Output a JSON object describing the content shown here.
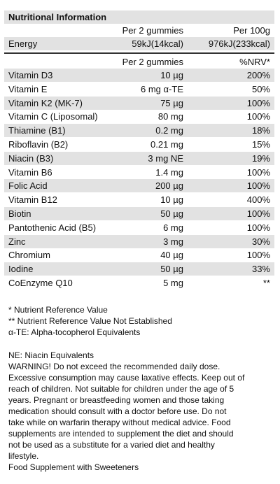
{
  "title": "Nutritional Information",
  "energy_header": [
    "Per 2 gummies",
    "Per 100g"
  ],
  "energy_row": [
    "Energy",
    "59kJ(14kcal)",
    "976kJ(233kcal)"
  ],
  "table": {
    "header": [
      "Per 2  gummies",
      "%NRV*"
    ],
    "rows": [
      [
        "Vitamin D3",
        "10 µg",
        "200%"
      ],
      [
        "Vitamin E",
        "6 mg α-TE",
        "50%"
      ],
      [
        "Vitamin K2 (MK-7)",
        "75 µg",
        "100%"
      ],
      [
        "Vitamin C (Liposomal)",
        "80 mg",
        "100%"
      ],
      [
        "Thiamine (B1)",
        "0.2 mg",
        "18%"
      ],
      [
        "Riboflavin (B2)",
        "0.21 mg",
        "15%"
      ],
      [
        "Niacin (B3)",
        "3 mg NE",
        "19%"
      ],
      [
        "Vitamin B6",
        "1.4 mg",
        "100%"
      ],
      [
        "Folic Acid",
        "200 µg",
        "100%"
      ],
      [
        "Vitamin B12",
        "10 µg",
        "400%"
      ],
      [
        "Biotin",
        "50 µg",
        "100%"
      ],
      [
        "Pantothenic Acid (B5)",
        "6 mg",
        "100%"
      ],
      [
        "Zinc",
        "3 mg",
        "30%"
      ],
      [
        "Chromium",
        "40 µg",
        "100%"
      ],
      [
        "Iodine",
        "50 µg",
        "33%"
      ],
      [
        "CoEnzyme Q10",
        "5 mg",
        "**"
      ]
    ]
  },
  "footnotes": [
    "* Nutrient Reference Value",
    "** Nutrient Reference Value Not Established",
    "α-TE: Alpha-tocopherol Equivalents"
  ],
  "notes": [
    "NE: Niacin Equivalents",
    "WARNING! Do not exceed the recommended daily dose.",
    "Excessive consumption may cause laxative effects. Keep out of",
    "reach of children. Not suitable for children under the age of 5",
    "years. Pregnant or breastfeeding women and those taking",
    "medication should consult with a doctor before use. Do not",
    "take while on warfarin therapy without medical advice. Food",
    "supplements are intended to supplement the diet and should",
    "not be used as a substitute for a varied diet and healthy",
    "lifestyle.",
    "Food Supplement with Sweeteners"
  ]
}
